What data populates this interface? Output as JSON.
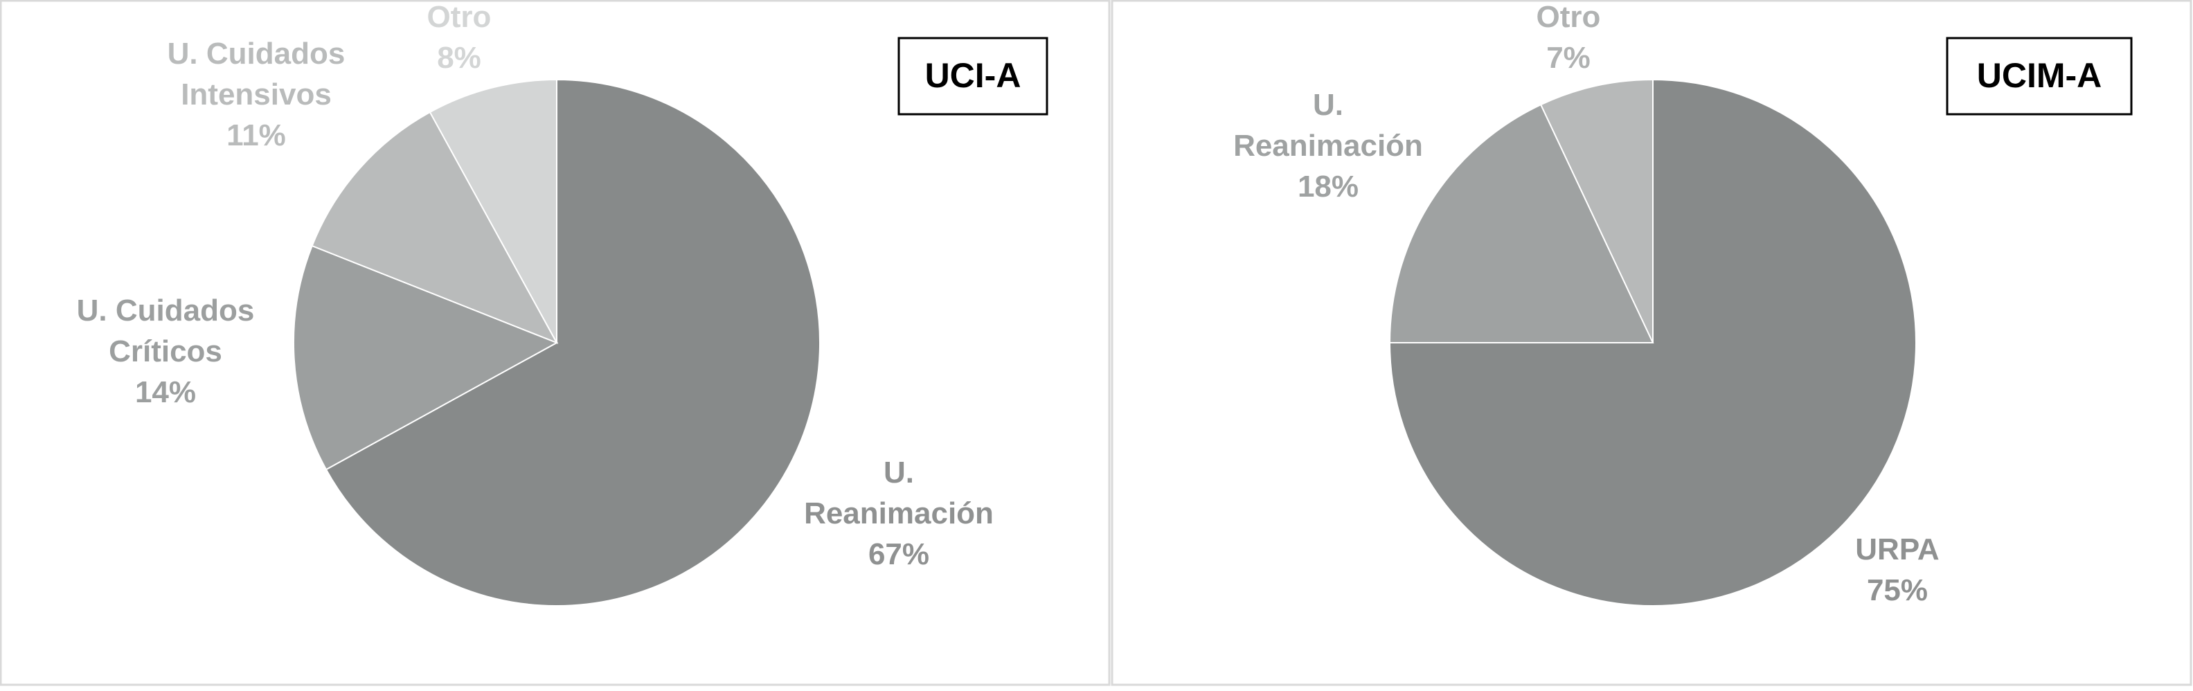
{
  "chart_data": [
    {
      "type": "pie",
      "title": "UCI-A",
      "slices": [
        {
          "label_lines": [
            "U.",
            "Reanimación"
          ],
          "value": 67,
          "value_label": "67%",
          "color": "#878a8a",
          "label_color": "#8f9191"
        },
        {
          "label_lines": [
            "U. Cuidados",
            "Críticos"
          ],
          "value": 14,
          "value_label": "14%",
          "color": "#9c9f9f",
          "label_color": "#9c9f9f"
        },
        {
          "label_lines": [
            "U. Cuidados",
            "Intensivos"
          ],
          "value": 11,
          "value_label": "11%",
          "color": "#b9bbbb",
          "label_color": "#b9bbbb"
        },
        {
          "label_lines": [
            "Otro"
          ],
          "value": 8,
          "value_label": "8%",
          "color": "#d3d5d5",
          "label_color": "#d3d5d5"
        }
      ]
    },
    {
      "type": "pie",
      "title": "UCIM-A",
      "slices": [
        {
          "label_lines": [
            "URPA"
          ],
          "value": 75,
          "value_label": "75%",
          "color": "#878a8a",
          "label_color": "#8f9191"
        },
        {
          "label_lines": [
            "U.",
            "Reanimación"
          ],
          "value": 18,
          "value_label": "18%",
          "color": "#9fa2a2",
          "label_color": "#9fa2a2"
        },
        {
          "label_lines": [
            "Otro"
          ],
          "value": 7,
          "value_label": "7%",
          "color": "#b7b9b9",
          "label_color": "#b0b2b2"
        }
      ]
    }
  ]
}
